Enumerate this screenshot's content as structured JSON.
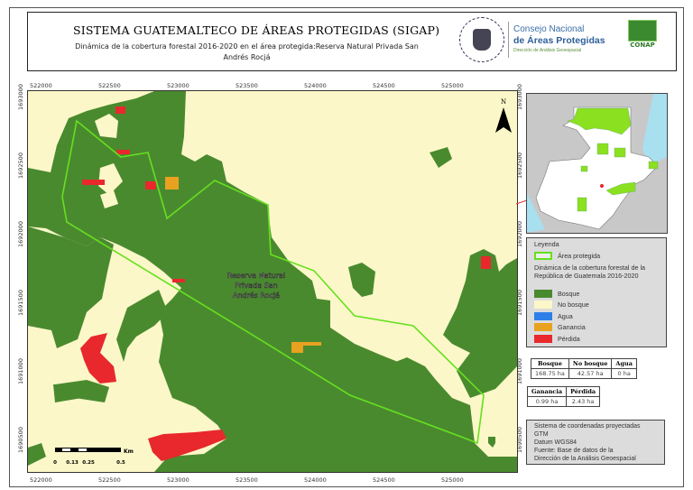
{
  "header": {
    "title": "SISTEMA GUATEMALTECO DE ÁREAS PROTEGIDAS  (SIGAP)",
    "subtitle": "Dinámica de la cobertura forestal 2016-2020 en el área protegida:Reserva Natural Privada San Andrés Rocjá",
    "logo_consejo_line1": "Consejo Nacional",
    "logo_consejo_line2": "de Áreas Protegidas",
    "logo_consejo_line3": "Dirección de Análisis Geoespacial",
    "logo_conap": "CONAP",
    "seal_text": "GOBIERNO DE LA REPÚBLICA DE GUATEMALA"
  },
  "map": {
    "x_ticks": [
      "522000",
      "522500",
      "523000",
      "523500",
      "524000",
      "524500",
      "525000"
    ],
    "y_ticks": [
      "1693000",
      "1692500",
      "1692000",
      "1691500",
      "1691000",
      "1690500"
    ],
    "area_label": [
      "Reserva Natural",
      "Privada San",
      "Andrés Rocjá"
    ],
    "north_label": "N",
    "scale_bar": {
      "labels": [
        "0",
        "0.13",
        "0.25",
        "0.5"
      ],
      "unit": "Km"
    },
    "colors": {
      "bosque": "#4a8a2f",
      "no_bosque": "#fbf7c8",
      "agua": "#2f7fe8",
      "ganancia": "#e8a21f",
      "perdida": "#e8282c",
      "area_protegida": "#66e01f"
    }
  },
  "legend": {
    "title": "Leyenda",
    "protected_area": "Área protegida",
    "description": "Dinámica de la cobertura forestal de la República de Guatemala 2016-2020",
    "items": [
      {
        "label": "Bosque",
        "color": "#4a8a2f"
      },
      {
        "label": "No bosque",
        "color": "#fbf7c8"
      },
      {
        "label": "Agua",
        "color": "#2f7fe8"
      },
      {
        "label": "Ganancia",
        "color": "#e8a21f"
      },
      {
        "label": "Pérdida",
        "color": "#e8282c"
      }
    ]
  },
  "stats1": {
    "headers": [
      "Bosque",
      "No bosque",
      "Agua"
    ],
    "values": [
      "168.75 ha",
      "42.57 ha",
      "0 ha"
    ]
  },
  "stats2": {
    "headers": [
      "Ganancia",
      "Pérdida"
    ],
    "values": [
      "0.99 ha",
      "2.43 ha"
    ]
  },
  "info": {
    "lines": [
      "Sistema de coordenadas proyectadas",
      "GTM",
      "Datum WGS84",
      "Fuente: Base de datos de la",
      "Dirección de la Análisis Geoespacial"
    ]
  }
}
